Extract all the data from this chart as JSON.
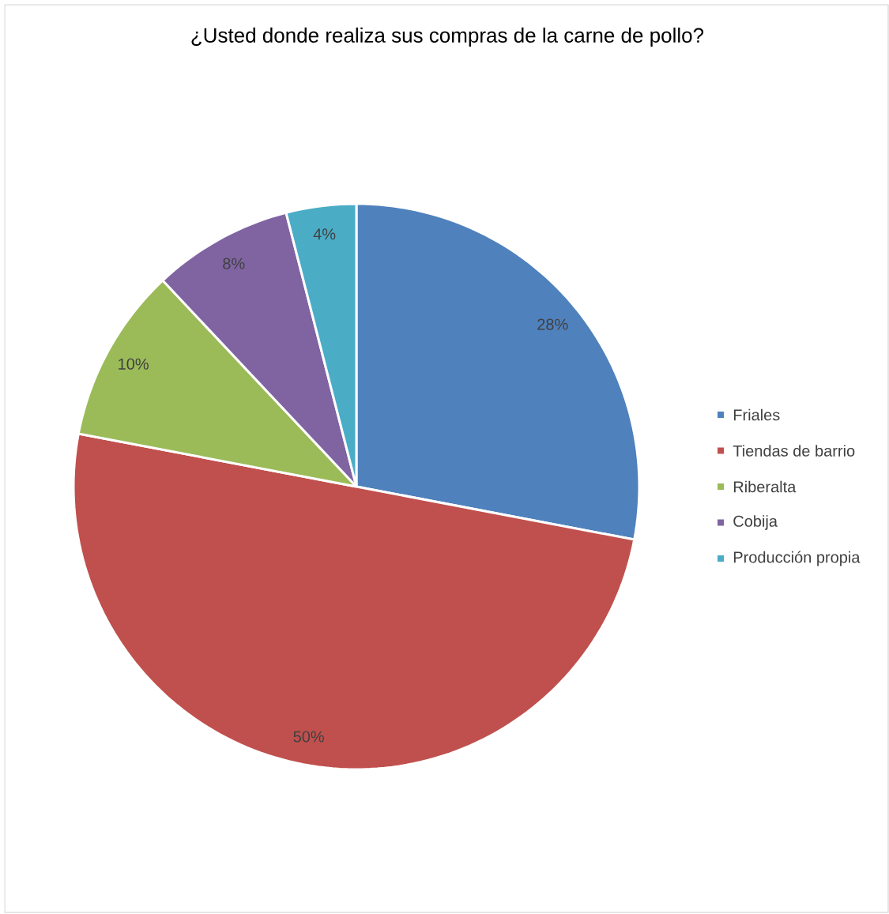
{
  "chart_data": {
    "type": "pie",
    "title": "¿Usted donde realiza sus compras de la carne de pollo?",
    "categories": [
      "Friales",
      "Tiendas de barrio",
      "Riberalta",
      "Cobija",
      "Producción propia"
    ],
    "values": [
      28,
      50,
      10,
      8,
      4
    ],
    "colors": [
      "#4f81bd",
      "#c0504d",
      "#9bbb59",
      "#8064a2",
      "#4bacc6"
    ],
    "value_labels": [
      "28%",
      "50%",
      "10%",
      "8%",
      "4%"
    ],
    "legend": "right"
  }
}
